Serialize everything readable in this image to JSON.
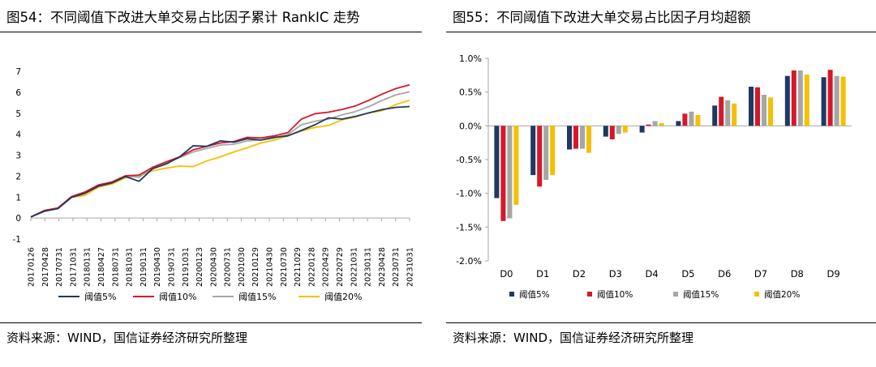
{
  "colors": {
    "s5": "#1f3864",
    "s10": "#d7182a",
    "s15": "#a6a6a6",
    "s20": "#f5c000",
    "axis": "#a6a6a6",
    "text": "#000000"
  },
  "left": {
    "title": "图54：不同阈值下改进大单交易占比因子累计 RankIC 走势",
    "source": "资料来源：WIND，国信证券经济研究所整理"
  },
  "right": {
    "title": "图55：不同阈值下改进大单交易占比因子月均超额",
    "source": "资料来源：WIND，国信证券经济研究所整理"
  },
  "chart_data": [
    {
      "type": "line",
      "title": "不同阈值下改进大单交易占比因子累计 RankIC 走势",
      "xlabel": "",
      "ylabel": "",
      "ylim": [
        -1,
        7
      ],
      "yticks": [
        "-1",
        "0",
        "1",
        "2",
        "3",
        "4",
        "5",
        "6",
        "7"
      ],
      "xticks": [
        "20170126",
        "20170428",
        "20170731",
        "20171031",
        "20180131",
        "20180427",
        "20180731",
        "20181031",
        "20190131",
        "20190430",
        "20190731",
        "20191031",
        "20200123",
        "20200430",
        "20200731",
        "20201030",
        "20210129",
        "20210430",
        "20210730",
        "20211029",
        "20220128",
        "20220429",
        "20220729",
        "20221031",
        "20230131",
        "20230428",
        "20230731",
        "20231031"
      ],
      "grid": false,
      "legend_position": "bottom",
      "x_index": [
        0,
        1,
        2,
        3,
        4,
        5,
        6,
        7,
        8,
        9,
        10,
        11,
        12,
        13,
        14,
        15,
        16,
        17,
        18,
        19,
        20,
        21,
        22,
        23,
        24,
        25,
        26,
        27,
        28
      ],
      "series": [
        {
          "name": "阈值5%",
          "color_key": "s5",
          "values": [
            0.05,
            0.32,
            0.45,
            0.98,
            1.18,
            1.52,
            1.68,
            1.98,
            1.75,
            2.35,
            2.58,
            2.92,
            3.45,
            3.42,
            3.68,
            3.62,
            3.78,
            3.72,
            3.85,
            3.92,
            4.18,
            4.45,
            4.78,
            4.72,
            4.85,
            5.02,
            5.18,
            5.28,
            5.32
          ]
        },
        {
          "name": "阈值10%",
          "color_key": "s10",
          "values": [
            0.05,
            0.36,
            0.48,
            1.02,
            1.24,
            1.58,
            1.72,
            2.02,
            2.05,
            2.42,
            2.68,
            2.92,
            3.25,
            3.42,
            3.58,
            3.65,
            3.85,
            3.82,
            3.92,
            4.08,
            4.72,
            4.98,
            5.05,
            5.18,
            5.35,
            5.62,
            5.92,
            6.18,
            6.35
          ]
        },
        {
          "name": "阈值15%",
          "color_key": "s15",
          "values": [
            0.05,
            0.35,
            0.47,
            1.0,
            1.2,
            1.55,
            1.7,
            2.0,
            1.95,
            2.38,
            2.62,
            2.88,
            3.15,
            3.32,
            3.48,
            3.52,
            3.68,
            3.72,
            3.82,
            3.98,
            4.45,
            4.62,
            4.72,
            4.92,
            5.08,
            5.32,
            5.62,
            5.88,
            6.02
          ]
        },
        {
          "name": "阈值20%",
          "color_key": "s20",
          "values": [
            0.05,
            0.36,
            0.48,
            1.0,
            1.08,
            1.48,
            1.62,
            1.92,
            2.02,
            2.25,
            2.38,
            2.48,
            2.45,
            2.72,
            2.92,
            3.15,
            3.35,
            3.58,
            3.72,
            3.92,
            4.15,
            4.32,
            4.42,
            4.68,
            4.82,
            5.02,
            5.12,
            5.42,
            5.62
          ]
        }
      ]
    },
    {
      "type": "bar",
      "title": "不同阈值下改进大单交易占比因子月均超额",
      "xlabel": "",
      "ylabel": "",
      "ylim": [
        -2.0,
        1.0
      ],
      "yticks": [
        "1.0%",
        "0.5%",
        "0.0%",
        "-0.5%",
        "-1.0%",
        "-1.5%",
        "-2.0%"
      ],
      "ytick_values": [
        1.0,
        0.5,
        0.0,
        -0.5,
        -1.0,
        -1.5,
        -2.0
      ],
      "grid": false,
      "legend_position": "bottom",
      "categories": [
        "D0",
        "D1",
        "D2",
        "D3",
        "D4",
        "D5",
        "D6",
        "D7",
        "D8",
        "D9"
      ],
      "series": [
        {
          "name": "阈值5%",
          "color_key": "s5",
          "values": [
            -1.07,
            -0.73,
            -0.35,
            -0.16,
            -0.1,
            0.07,
            0.3,
            0.58,
            0.74,
            0.72
          ]
        },
        {
          "name": "阈值10%",
          "color_key": "s10",
          "values": [
            -1.41,
            -0.9,
            -0.34,
            -0.2,
            0.02,
            0.18,
            0.43,
            0.57,
            0.82,
            0.83
          ]
        },
        {
          "name": "阈值15%",
          "color_key": "s15",
          "values": [
            -1.37,
            -0.8,
            -0.34,
            -0.12,
            0.07,
            0.21,
            0.38,
            0.46,
            0.82,
            0.74
          ]
        },
        {
          "name": "阈值20%",
          "color_key": "s20",
          "values": [
            -1.17,
            -0.73,
            -0.4,
            -0.1,
            0.04,
            0.16,
            0.33,
            0.42,
            0.76,
            0.73
          ]
        }
      ]
    }
  ]
}
